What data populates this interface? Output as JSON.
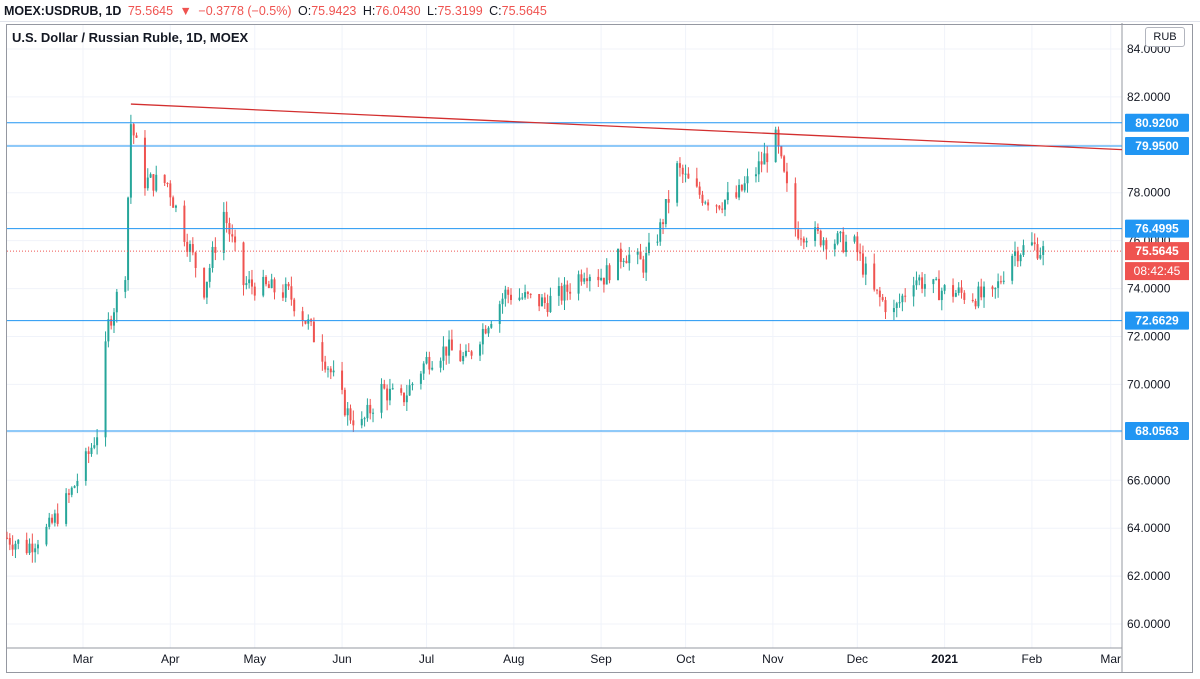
{
  "header": {
    "symbol": "MOEX:USDRUB, 1D",
    "last": "75.5645",
    "arrow": "▼",
    "change": "−0.3778 (−0.5%)",
    "o_label": "O:",
    "o_value": "75.9423",
    "h_label": "H:",
    "h_value": "76.0430",
    "l_label": "L:",
    "l_value": "75.3199",
    "c_label": "C:",
    "c_value": "75.5645"
  },
  "currency_button": "RUB",
  "colors": {
    "up": "#26a69a",
    "down": "#ef5350",
    "hline": "#2196f3",
    "trend": "#d32f2f",
    "grid": "#f0f3fa"
  },
  "chart_data": {
    "type": "candlestick",
    "title": "U.S. Dollar / Russian Ruble, 1D, MOEX",
    "ylim": [
      59,
      85
    ],
    "yticks": [
      "60.0000",
      "62.0000",
      "64.0000",
      "66.0000",
      "68.0000",
      "70.0000",
      "72.0000",
      "74.0000",
      "76.0000",
      "78.0000",
      "80.0000",
      "82.0000",
      "84.0000"
    ],
    "x_start": "2020-02-03",
    "x_end": "2021-03-05",
    "xticks": [
      {
        "date": "2020-03-01",
        "label": "Mar"
      },
      {
        "date": "2020-04-01",
        "label": "Apr"
      },
      {
        "date": "2020-05-01",
        "label": "May"
      },
      {
        "date": "2020-06-01",
        "label": "Jun"
      },
      {
        "date": "2020-07-01",
        "label": "Jul"
      },
      {
        "date": "2020-08-01",
        "label": "Aug"
      },
      {
        "date": "2020-09-01",
        "label": "Sep"
      },
      {
        "date": "2020-10-01",
        "label": "Oct"
      },
      {
        "date": "2020-11-01",
        "label": "Nov"
      },
      {
        "date": "2020-12-01",
        "label": "Dec"
      },
      {
        "date": "2021-01-01",
        "label": "2021"
      },
      {
        "date": "2021-02-01",
        "label": "Feb"
      },
      {
        "date": "2021-03-01",
        "label": "Mar"
      }
    ],
    "hlines": [
      80.92,
      79.95,
      76.4995,
      72.6629,
      68.0563
    ],
    "hline_labels": [
      "80.9200",
      "79.9500",
      "76.4995",
      "72.6629",
      "68.0563"
    ],
    "last_price": 75.5645,
    "last_price_label": "75.5645",
    "countdown": "08:42:45",
    "trendline": {
      "start": {
        "date": "2020-03-18",
        "value": 81.7
      },
      "end": {
        "date": "2021-03-05",
        "value": 79.8
      }
    },
    "closes": [
      {
        "date": "2020-02-03",
        "close": 63.6
      },
      {
        "date": "2020-02-10",
        "close": 63.2
      },
      {
        "date": "2020-02-18",
        "close": 64.0
      },
      {
        "date": "2020-02-25",
        "close": 65.3
      },
      {
        "date": "2020-03-02",
        "close": 66.8
      },
      {
        "date": "2020-03-06",
        "close": 68.0
      },
      {
        "date": "2020-03-10",
        "close": 72.5
      },
      {
        "date": "2020-03-16",
        "close": 74.8
      },
      {
        "date": "2020-03-18",
        "close": 80.9
      },
      {
        "date": "2020-03-23",
        "close": 78.5
      },
      {
        "date": "2020-03-31",
        "close": 78.4
      },
      {
        "date": "2020-04-06",
        "close": 76.3
      },
      {
        "date": "2020-04-13",
        "close": 74.0
      },
      {
        "date": "2020-04-20",
        "close": 77.2
      },
      {
        "date": "2020-04-27",
        "close": 74.2
      },
      {
        "date": "2020-05-06",
        "close": 74.0
      },
      {
        "date": "2020-05-13",
        "close": 73.8
      },
      {
        "date": "2020-05-20",
        "close": 72.5
      },
      {
        "date": "2020-05-27",
        "close": 70.8
      },
      {
        "date": "2020-06-03",
        "close": 68.8
      },
      {
        "date": "2020-06-08",
        "close": 68.3
      },
      {
        "date": "2020-06-15",
        "close": 69.8
      },
      {
        "date": "2020-06-22",
        "close": 69.3
      },
      {
        "date": "2020-07-01",
        "close": 71.0
      },
      {
        "date": "2020-07-08",
        "close": 71.5
      },
      {
        "date": "2020-07-15",
        "close": 71.0
      },
      {
        "date": "2020-07-22",
        "close": 72.5
      },
      {
        "date": "2020-07-29",
        "close": 73.8
      },
      {
        "date": "2020-08-05",
        "close": 73.6
      },
      {
        "date": "2020-08-12",
        "close": 73.4
      },
      {
        "date": "2020-08-19",
        "close": 73.8
      },
      {
        "date": "2020-08-26",
        "close": 74.8
      },
      {
        "date": "2020-09-02",
        "close": 74.5
      },
      {
        "date": "2020-09-09",
        "close": 75.5
      },
      {
        "date": "2020-09-16",
        "close": 75.0
      },
      {
        "date": "2020-09-22",
        "close": 76.5
      },
      {
        "date": "2020-09-28",
        "close": 79.0
      },
      {
        "date": "2020-10-05",
        "close": 78.0
      },
      {
        "date": "2020-10-12",
        "close": 77.6
      },
      {
        "date": "2020-10-19",
        "close": 77.8
      },
      {
        "date": "2020-10-26",
        "close": 78.9
      },
      {
        "date": "2020-11-02",
        "close": 80.2
      },
      {
        "date": "2020-11-09",
        "close": 76.5
      },
      {
        "date": "2020-11-16",
        "close": 76.2
      },
      {
        "date": "2020-11-23",
        "close": 76.0
      },
      {
        "date": "2020-11-30",
        "close": 75.8
      },
      {
        "date": "2020-12-07",
        "close": 73.8
      },
      {
        "date": "2020-12-14",
        "close": 73.0
      },
      {
        "date": "2020-12-21",
        "close": 74.5
      },
      {
        "date": "2020-12-28",
        "close": 74.0
      },
      {
        "date": "2021-01-11",
        "close": 73.7
      },
      {
        "date": "2021-01-18",
        "close": 73.6
      },
      {
        "date": "2021-01-25",
        "close": 75.5
      },
      {
        "date": "2021-02-01",
        "close": 75.8
      },
      {
        "date": "2021-02-05",
        "close": 75.56
      }
    ]
  }
}
